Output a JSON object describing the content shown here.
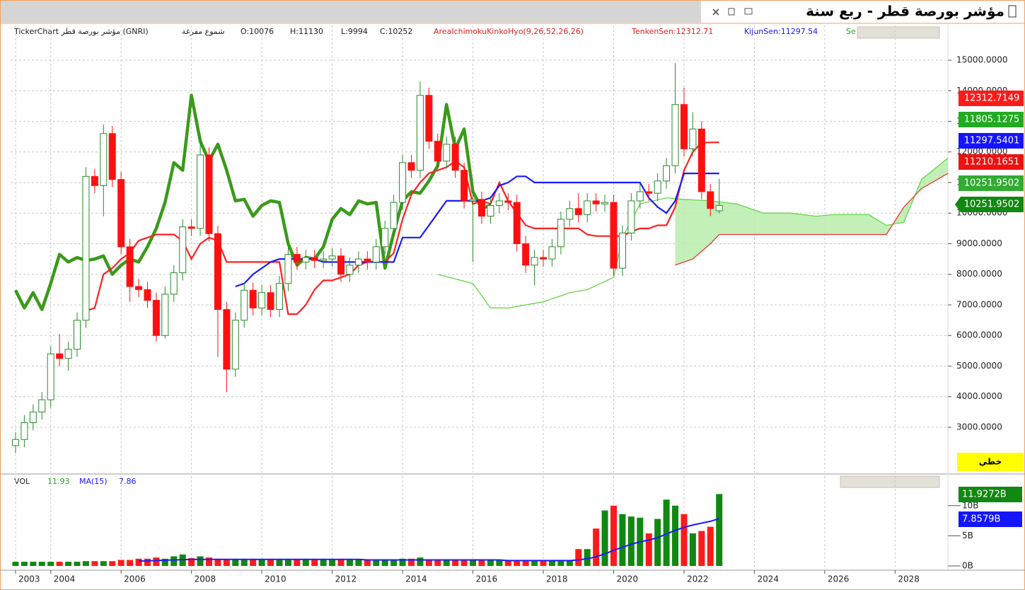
{
  "window": {
    "title": "مؤشر بورصة قطر - ربع سنة"
  },
  "header": {
    "symbol": "TickerChart مؤشر بورصة قطر (GNRI)",
    "style": "شموع مفرغة",
    "open": "O:10076",
    "high": "H:11130",
    "low": "L:9994",
    "close": "C:10252",
    "indicator": "AreaIchimokuKinkoHyo(9,26,52,26,26)",
    "tenkan": "TenkenSen:12312.71",
    "kijun": "KijunSen:11297.54",
    "senkou": "Se"
  },
  "ui": {
    "line_button": "خطي"
  },
  "volume_header": {
    "name": "VOL",
    "value": "11.93",
    "ma": "MA(15)",
    "ma_value": "7.86"
  },
  "chart_data": [
    {
      "type": "candlestick",
      "x": [
        2003,
        2003.25,
        2003.5,
        2003.75,
        2004,
        2004.25,
        2004.5,
        2004.75,
        2005,
        2005.25,
        2005.5,
        2005.75,
        2006,
        2006.25,
        2006.5,
        2006.75,
        2007,
        2007.25,
        2007.5,
        2007.75,
        2008,
        2008.25,
        2008.5,
        2008.75,
        2009,
        2009.25,
        2009.5,
        2009.75,
        2010,
        2010.25,
        2010.5,
        2010.75,
        2011,
        2011.25,
        2011.5,
        2011.75,
        2012,
        2012.25,
        2012.5,
        2012.75,
        2013,
        2013.25,
        2013.5,
        2013.75,
        2014,
        2014.25,
        2014.5,
        2014.75,
        2015,
        2015.25,
        2015.5,
        2015.75,
        2016,
        2016.25,
        2016.5,
        2016.75,
        2017,
        2017.25,
        2017.5,
        2017.75,
        2018,
        2018.25,
        2018.5,
        2018.75,
        2019,
        2019.25,
        2019.5,
        2019.75,
        2020,
        2020.25,
        2020.5,
        2020.75,
        2021,
        2021.25,
        2021.5,
        2021.75,
        2022,
        2022.25,
        2022.5,
        2022.75,
        2023
      ],
      "open": [
        2400,
        2600,
        3150,
        3500,
        3900,
        5400,
        5250,
        5550,
        6500,
        11200,
        10900,
        12600,
        11100,
        8900,
        7600,
        7500,
        7150,
        6000,
        7350,
        8050,
        9550,
        9500,
        11900,
        9330,
        6850,
        4900,
        6500,
        7480,
        6900,
        7400,
        6850,
        7700,
        8650,
        8400,
        8550,
        8450,
        8500,
        8600,
        8000,
        8300,
        8500,
        8400,
        8900,
        9500,
        10350,
        11650,
        11400,
        13850,
        12350,
        11700,
        12250,
        11400,
        10400,
        10450,
        9900,
        10250,
        10400,
        10350,
        9000,
        8300,
        8550,
        8500,
        8900,
        9800,
        10150,
        9950,
        10400,
        10300,
        10350,
        8200,
        9350,
        10400,
        10700,
        10650,
        11050,
        11550,
        13550,
        12100,
        12750,
        10700,
        10076
      ],
      "high": [
        2850,
        3400,
        3750,
        4150,
        5650,
        6050,
        5800,
        6750,
        11500,
        11450,
        12900,
        12850,
        11350,
        9150,
        7850,
        7750,
        7400,
        7600,
        8300,
        9800,
        9800,
        12600,
        12150,
        9580,
        7100,
        6750,
        7730,
        7730,
        7650,
        7650,
        7950,
        8900,
        8900,
        8800,
        8800,
        8750,
        8850,
        8850,
        8550,
        8750,
        8750,
        9150,
        9750,
        10600,
        11900,
        11900,
        14300,
        14100,
        12600,
        12500,
        12500,
        11650,
        10700,
        10700,
        10500,
        10650,
        10650,
        10600,
        9250,
        8800,
        8800,
        9150,
        10050,
        10400,
        10650,
        10650,
        10650,
        10600,
        10600,
        9600,
        10650,
        10950,
        10950,
        11300,
        11800,
        14900,
        14100,
        13300,
        13000,
        10950,
        11130
      ],
      "low": [
        2150,
        2350,
        2900,
        3250,
        3650,
        5000,
        4850,
        5300,
        6250,
        10650,
        9900,
        10850,
        8650,
        7100,
        7250,
        6900,
        5800,
        5900,
        7100,
        7800,
        9250,
        9250,
        9080,
        5300,
        4150,
        4650,
        6250,
        6650,
        6650,
        6600,
        6600,
        7450,
        8150,
        8150,
        8200,
        8200,
        8250,
        7750,
        7750,
        8050,
        8150,
        8150,
        8650,
        9250,
        10100,
        11150,
        11150,
        12100,
        11450,
        11450,
        11150,
        10150,
        8400,
        9650,
        9650,
        10000,
        10100,
        8750,
        8050,
        7650,
        8250,
        8250,
        8650,
        9550,
        9700,
        9700,
        10050,
        10050,
        7950,
        7950,
        9100,
        10150,
        10400,
        10400,
        10800,
        11300,
        11850,
        11850,
        10450,
        9900,
        9994
      ],
      "close": [
        2600,
        3150,
        3500,
        3900,
        5400,
        5250,
        5550,
        6500,
        11200,
        10900,
        12600,
        11100,
        8900,
        7600,
        7500,
        7150,
        6000,
        7350,
        8050,
        9550,
        9500,
        11900,
        9330,
        6850,
        4900,
        6500,
        7480,
        6900,
        7400,
        6850,
        7700,
        8650,
        8400,
        8550,
        8450,
        8500,
        8600,
        8000,
        8300,
        8500,
        8400,
        8900,
        9500,
        10350,
        11650,
        11400,
        13850,
        12350,
        11700,
        12250,
        11400,
        10400,
        10450,
        9900,
        10250,
        10400,
        10350,
        9000,
        8300,
        8550,
        8500,
        8900,
        9800,
        10150,
        9950,
        10400,
        10300,
        10350,
        8200,
        9350,
        10400,
        10700,
        10650,
        11050,
        11550,
        13550,
        12100,
        12750,
        10700,
        10150,
        10252
      ],
      "up_color": "#2a8a2a",
      "down_color": "#ff1010",
      "series": [
        {
          "color": "#ff2020",
          "values": [
            null,
            null,
            null,
            null,
            null,
            null,
            null,
            null,
            6800,
            6900,
            8000,
            8200,
            8500,
            8700,
            9100,
            9200,
            9300,
            9300,
            9300,
            9100,
            8500,
            9000,
            9200,
            9100,
            8400,
            8400,
            8400,
            8400,
            8400,
            8400,
            8400,
            6700,
            6700,
            7000,
            7500,
            7800,
            7800,
            7900,
            8000,
            8300,
            8400,
            8400,
            8400,
            8700,
            9800,
            10600,
            11000,
            11300,
            11400,
            11500,
            11700,
            11500,
            10300,
            10400,
            10300,
            11000,
            10400,
            10000,
            9600,
            9500,
            9500,
            9500,
            9500,
            9500,
            9500,
            9300,
            9250,
            9250,
            9250,
            9250,
            9400,
            9500,
            9500,
            9600,
            9600,
            10200,
            11400,
            12000,
            12300,
            12310,
            12312.71
          ]
        },
        {
          "color": "#1a1aff",
          "values": [
            null,
            null,
            null,
            null,
            null,
            null,
            null,
            null,
            null,
            null,
            null,
            null,
            null,
            null,
            null,
            null,
            null,
            null,
            null,
            null,
            null,
            null,
            null,
            null,
            null,
            7600,
            7700,
            8000,
            8200,
            8400,
            8500,
            8500,
            8500,
            8500,
            8500,
            8400,
            8400,
            8400,
            8400,
            8400,
            8400,
            8400,
            8400,
            8400,
            9200,
            9200,
            9200,
            9600,
            10000,
            10400,
            10400,
            10400,
            10400,
            10400,
            10500,
            10900,
            11000,
            11200,
            11200,
            11000,
            11000,
            11000,
            11000,
            11000,
            11000,
            11000,
            11000,
            11000,
            11000,
            11000,
            11000,
            11000,
            10500,
            10200,
            10000,
            10400,
            11297.5401,
            11297.5401,
            11297.5401,
            11297.5401,
            11297.5401
          ]
        }
      ],
      "chikou": {
        "color": "#3a9a1a",
        "values": [
          7480,
          6900,
          7400,
          6850,
          7700,
          8650,
          8400,
          8550,
          8450,
          8500,
          8600,
          8000,
          8300,
          8500,
          8400,
          8900,
          9500,
          10350,
          11650,
          11400,
          13850,
          12350,
          11700,
          12250,
          11400,
          10400,
          10450,
          9900,
          10250,
          10400,
          10350,
          9000,
          8300,
          8550,
          8500,
          8900,
          9800,
          10150,
          9950,
          10400,
          10300,
          10350,
          8200,
          9350,
          10400,
          10700,
          10650,
          11050,
          11550,
          13550,
          12100,
          12750,
          10700,
          10150,
          10252
        ]
      },
      "cloud": {
        "fill": "#b8ecac",
        "span_a": {
          "color": "#66d44a",
          "x": [
            2015,
            2016,
            2016.5,
            2017,
            2018,
            2018.75,
            2019.25,
            2020,
            2020.25,
            2020.75,
            2021.5,
            2022,
            2022.75,
            2023.5,
            2024.25,
            2025,
            2025.75,
            2026.25,
            2027.25,
            2027.75,
            2028.25,
            2028.75,
            2029.5
          ],
          "values": [
            8000,
            7700,
            6900,
            6900,
            7100,
            7400,
            7500,
            7900,
            9200,
            10300,
            10500,
            10450,
            10400,
            10300,
            10000,
            10000,
            9900,
            9950,
            9950,
            9600,
            9700,
            11100,
            11800
          ]
        },
        "span_b": {
          "color": "#ee3333",
          "x": [
            2021.75,
            2022.25,
            2022.75,
            2023,
            2027.75,
            2028.25,
            2028.75,
            2029.5
          ],
          "values": [
            8300,
            8500,
            9000,
            9300,
            9300,
            10200,
            10800,
            11300
          ]
        }
      },
      "xlim": [
        2002.86,
        2029.5
      ],
      "xticks": [
        2003,
        2004,
        2006,
        2008,
        2010,
        2012,
        2014,
        2016,
        2018,
        2020,
        2022,
        2024,
        2026,
        2028
      ],
      "ylim": [
        1520,
        16133
      ],
      "yticks": [
        {
          "value": 3000,
          "label": "3000.0000"
        },
        {
          "value": 4000,
          "label": "4000.0000"
        },
        {
          "value": 5000,
          "label": "5000.0000"
        },
        {
          "value": 6000,
          "label": "6000.0000"
        },
        {
          "value": 7000,
          "label": "7000.0000"
        },
        {
          "value": 8000,
          "label": "8000.0000"
        },
        {
          "value": 9000,
          "label": "9000.0000"
        },
        {
          "value": 10000,
          "label": "10000.0000"
        },
        {
          "value": 11000,
          "label": "11000.0000"
        },
        {
          "value": 12000,
          "label": "12000.0000"
        },
        {
          "value": 13000,
          "label": "13000.0000"
        },
        {
          "value": 14000,
          "label": "14000.0000"
        },
        {
          "value": 15000,
          "label": "15000.0000"
        }
      ],
      "grid": true,
      "price_labels": [
        {
          "value": 12312.7149,
          "color": "#ff1a1a"
        },
        {
          "value": 11805.1275,
          "color": "#22aa22"
        },
        {
          "value": 11297.5401,
          "color": "#1515ff"
        },
        {
          "value": 11210.1651,
          "color": "#ee1111"
        },
        {
          "value": 10251.9502,
          "color": "#33aa33"
        },
        {
          "value": 10251.9502,
          "color": "#118811"
        }
      ]
    },
    {
      "type": "bar",
      "values": [
        0.7,
        0.7,
        0.7,
        0.7,
        0.7,
        0.7,
        0.7,
        0.7,
        0.8,
        0.8,
        0.8,
        0.8,
        1.0,
        1.0,
        1.2,
        1.2,
        1.4,
        1.2,
        1.6,
        1.9,
        1.3,
        1.6,
        1.4,
        1.2,
        1.0,
        1.0,
        1.0,
        1.0,
        1.0,
        1.0,
        1.0,
        1.0,
        1.0,
        1.0,
        1.0,
        1.0,
        1.0,
        1.0,
        1.0,
        1.0,
        1.0,
        1.0,
        1.0,
        1.0,
        1.2,
        1.2,
        1.4,
        1.0,
        0.9,
        0.9,
        0.9,
        0.9,
        0.9,
        0.9,
        0.9,
        0.9,
        0.9,
        0.9,
        0.9,
        0.9,
        0.9,
        0.9,
        0.9,
        0.9,
        2.8,
        2.8,
        6.2,
        9.2,
        10,
        8.6,
        8.2,
        8,
        5.4,
        7.8,
        11,
        10,
        8.6,
        5.4,
        5.8,
        6.5,
        11.9272
      ],
      "ma": {
        "color": "#1a1aff",
        "values": [
          null,
          null,
          null,
          null,
          null,
          null,
          null,
          null,
          null,
          null,
          null,
          null,
          null,
          null,
          0.8,
          0.85,
          0.9,
          0.95,
          1.0,
          1.05,
          1.1,
          1.1,
          1.1,
          1.1,
          1.1,
          1.1,
          1.1,
          1.1,
          1.1,
          1.1,
          1.1,
          1.1,
          1.1,
          1.1,
          1.1,
          1.1,
          1.1,
          1.1,
          1.1,
          1.1,
          1.0,
          1.0,
          1.0,
          1.0,
          1.0,
          1.0,
          1.0,
          1.0,
          1.0,
          1.0,
          1.0,
          1.0,
          1.0,
          1.0,
          1.0,
          1.0,
          0.9,
          0.9,
          0.9,
          0.9,
          0.9,
          0.9,
          0.9,
          0.9,
          1.0,
          1.2,
          1.5,
          2.0,
          2.6,
          3.1,
          3.6,
          4.0,
          4.3,
          4.7,
          5.3,
          5.9,
          6.4,
          6.8,
          7.1,
          7.4,
          7.8579
        ]
      },
      "ylim": [
        -0.7,
        14.9
      ],
      "yticks": [
        {
          "value": 0,
          "label": "0B"
        },
        {
          "value": 5,
          "label": "5B"
        },
        {
          "value": 10,
          "label": "10B"
        }
      ],
      "last_labels": [
        {
          "value": 11.9272,
          "label": "11.9272B",
          "color": "#118811"
        },
        {
          "value": 7.8579,
          "label": "7.8579B",
          "color": "#1515ff"
        }
      ]
    }
  ]
}
